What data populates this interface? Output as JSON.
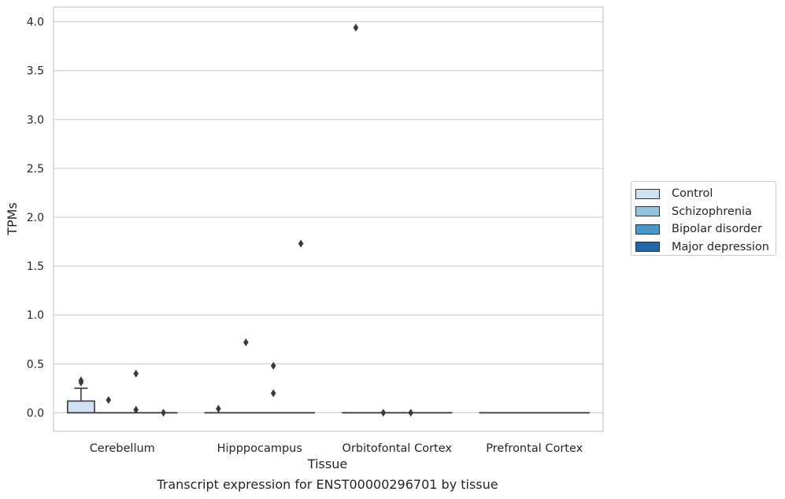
{
  "caption": "Transcript expression for ENST00000296701 by tissue",
  "chart_data": {
    "type": "box",
    "xlabel": "Tissue",
    "ylabel": "TPMs",
    "ylim": [
      -0.19,
      4.15
    ],
    "yticks": [
      "0.0",
      "0.5",
      "1.0",
      "1.5",
      "2.0",
      "2.5",
      "3.0",
      "3.5",
      "4.0"
    ],
    "grid": true,
    "legend_position": "outside-right",
    "categories": [
      "Cerebellum",
      "Hipppocampus",
      "Orbitofontal Cortex",
      "Prefrontal Cortex"
    ],
    "series": [
      {
        "name": "Control",
        "color": "#cfe1f2",
        "boxes": [
          {
            "q1": 0.0,
            "median": 0.0,
            "q3": 0.12,
            "whisker_low": 0.0,
            "whisker_high": 0.25,
            "outliers": [
              0.31,
              0.33
            ]
          },
          {
            "q1": 0.0,
            "median": 0.0,
            "q3": 0.0,
            "whisker_low": 0.0,
            "whisker_high": 0.0,
            "outliers": [
              0.04
            ]
          },
          {
            "q1": 0.0,
            "median": 0.0,
            "q3": 0.0,
            "whisker_low": 0.0,
            "whisker_high": 0.0,
            "outliers": [
              3.94
            ]
          },
          {
            "q1": 0.0,
            "median": 0.0,
            "q3": 0.0,
            "whisker_low": 0.0,
            "whisker_high": 0.0,
            "outliers": []
          }
        ]
      },
      {
        "name": "Schizophrenia",
        "color": "#93c4de",
        "boxes": [
          {
            "q1": 0.0,
            "median": 0.0,
            "q3": 0.0,
            "whisker_low": 0.0,
            "whisker_high": 0.0,
            "outliers": [
              0.13
            ]
          },
          {
            "q1": 0.0,
            "median": 0.0,
            "q3": 0.0,
            "whisker_low": 0.0,
            "whisker_high": 0.0,
            "outliers": [
              0.72
            ]
          },
          {
            "q1": 0.0,
            "median": 0.0,
            "q3": 0.0,
            "whisker_low": 0.0,
            "whisker_high": 0.0,
            "outliers": [
              0.0
            ]
          },
          {
            "q1": 0.0,
            "median": 0.0,
            "q3": 0.0,
            "whisker_low": 0.0,
            "whisker_high": 0.0,
            "outliers": []
          }
        ]
      },
      {
        "name": "Bipolar disorder",
        "color": "#4a98c9",
        "boxes": [
          {
            "q1": 0.0,
            "median": 0.0,
            "q3": 0.0,
            "whisker_low": 0.0,
            "whisker_high": 0.0,
            "outliers": [
              0.4,
              0.03
            ]
          },
          {
            "q1": 0.0,
            "median": 0.0,
            "q3": 0.0,
            "whisker_low": 0.0,
            "whisker_high": 0.0,
            "outliers": [
              0.48,
              0.2
            ]
          },
          {
            "q1": 0.0,
            "median": 0.0,
            "q3": 0.0,
            "whisker_low": 0.0,
            "whisker_high": 0.0,
            "outliers": [
              0.0
            ]
          },
          {
            "q1": 0.0,
            "median": 0.0,
            "q3": 0.0,
            "whisker_low": 0.0,
            "whisker_high": 0.0,
            "outliers": []
          }
        ]
      },
      {
        "name": "Major depression",
        "color": "#2366a8",
        "boxes": [
          {
            "q1": 0.0,
            "median": 0.0,
            "q3": 0.0,
            "whisker_low": 0.0,
            "whisker_high": 0.0,
            "outliers": [
              0.0
            ]
          },
          {
            "q1": 0.0,
            "median": 0.0,
            "q3": 0.0,
            "whisker_low": 0.0,
            "whisker_high": 0.0,
            "outliers": [
              1.73
            ]
          },
          {
            "q1": 0.0,
            "median": 0.0,
            "q3": 0.0,
            "whisker_low": 0.0,
            "whisker_high": 0.0,
            "outliers": []
          },
          {
            "q1": 0.0,
            "median": 0.0,
            "q3": 0.0,
            "whisker_low": 0.0,
            "whisker_high": 0.0,
            "outliers": []
          }
        ]
      }
    ]
  }
}
